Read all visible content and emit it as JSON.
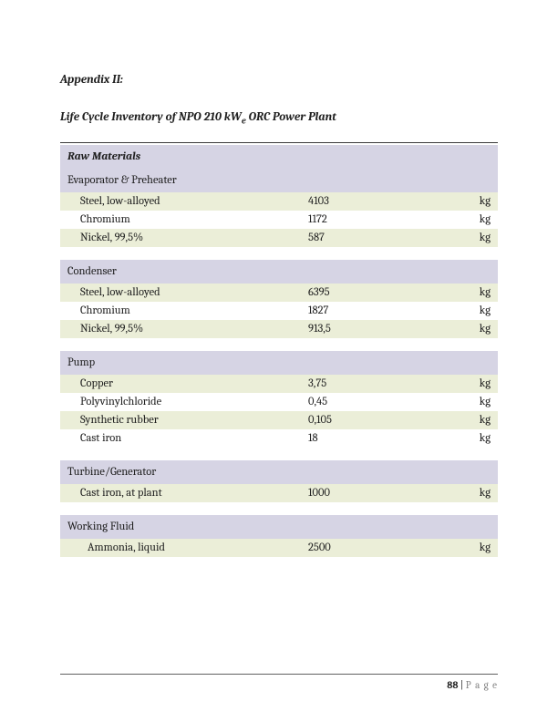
{
  "appendix": "Appendix II:",
  "title_prefix": "Life Cycle Inventory of NPO 210 kW",
  "title_sub": "e",
  "title_suffix": " ORC Power Plant",
  "table_header": "Raw Materials",
  "colors": {
    "section_bg": "#d6d4e4",
    "row_odd_bg": "#ebeed8",
    "row_even_bg": "#ffffff",
    "top_rule": "#3a3a3a"
  },
  "sections": [
    {
      "name": "Evaporator & Preheater",
      "rows": [
        {
          "name": "Steel, low-alloyed",
          "value": "4103",
          "unit": "kg"
        },
        {
          "name": "Chromium",
          "value": "1172",
          "unit": "kg"
        },
        {
          "name": "Nickel, 99,5%",
          "value": "587",
          "unit": "kg"
        }
      ]
    },
    {
      "name": "Condenser",
      "rows": [
        {
          "name": "Steel, low-alloyed",
          "value": "6395",
          "unit": "kg"
        },
        {
          "name": "Chromium",
          "value": "1827",
          "unit": "kg"
        },
        {
          "name": "Nickel, 99,5%",
          "value": "913,5",
          "unit": "kg"
        }
      ]
    },
    {
      "name": "Pump",
      "rows": [
        {
          "name": "Copper",
          "value": "3,75",
          "unit": "kg"
        },
        {
          "name": "Polyvinylchloride",
          "value": "0,45",
          "unit": "kg"
        },
        {
          "name": "Synthetic rubber",
          "value": "0,105",
          "unit": "kg"
        },
        {
          "name": "Cast iron",
          "value": "18",
          "unit": "kg"
        }
      ]
    },
    {
      "name": "Turbine/Generator",
      "rows": [
        {
          "name": "Cast iron, at plant",
          "value": "1000",
          "unit": "kg"
        }
      ]
    },
    {
      "name": "Working Fluid",
      "rows": [
        {
          "name": "Ammonia, liquid",
          "value": "2500",
          "unit": "kg",
          "indent": true
        }
      ]
    }
  ],
  "footer": {
    "page_number": "88",
    "separator": " | ",
    "label": "P a g e"
  }
}
